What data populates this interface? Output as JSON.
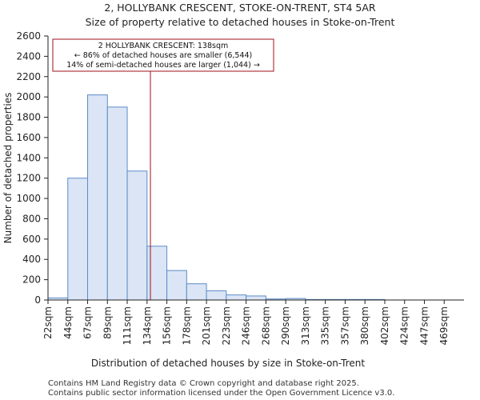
{
  "chart_data": {
    "type": "bar",
    "title_line1": "2, HOLLYBANK CRESCENT, STOKE-ON-TRENT, ST4 5AR",
    "title_line2": "Size of property relative to detached houses in Stoke-on-Trent",
    "xlabel": "Distribution of detached houses by size in Stoke-on-Trent",
    "ylabel": "Number of detached properties",
    "ylim": [
      0,
      2600
    ],
    "yticks": [
      0,
      200,
      400,
      600,
      800,
      1000,
      1200,
      1400,
      1600,
      1800,
      2000,
      2200,
      2400,
      2600
    ],
    "categories": [
      "22sqm",
      "44sqm",
      "67sqm",
      "89sqm",
      "111sqm",
      "134sqm",
      "156sqm",
      "178sqm",
      "201sqm",
      "223sqm",
      "246sqm",
      "268sqm",
      "290sqm",
      "313sqm",
      "335sqm",
      "357sqm",
      "380sqm",
      "402sqm",
      "424sqm",
      "447sqm",
      "469sqm"
    ],
    "values": [
      20,
      1200,
      2020,
      1900,
      1270,
      530,
      290,
      160,
      90,
      50,
      40,
      10,
      15,
      5,
      5,
      5,
      5,
      0,
      0,
      0,
      0
    ],
    "marker": {
      "value_index": 5.17,
      "color": "#a0101a"
    },
    "annotation": {
      "line1": "2 HOLLYBANK CRESCENT: 138sqm",
      "line2": "← 86% of detached houses are smaller (6,544)",
      "line3": "14% of semi-detached houses are larger (1,044) →"
    },
    "bar_fill": "#dbe5f5",
    "bar_stroke": "#5b8bc9"
  },
  "footer": {
    "line1": "Contains HM Land Registry data © Crown copyright and database right 2025.",
    "line2": "Contains public sector information licensed under the Open Government Licence v3.0."
  }
}
